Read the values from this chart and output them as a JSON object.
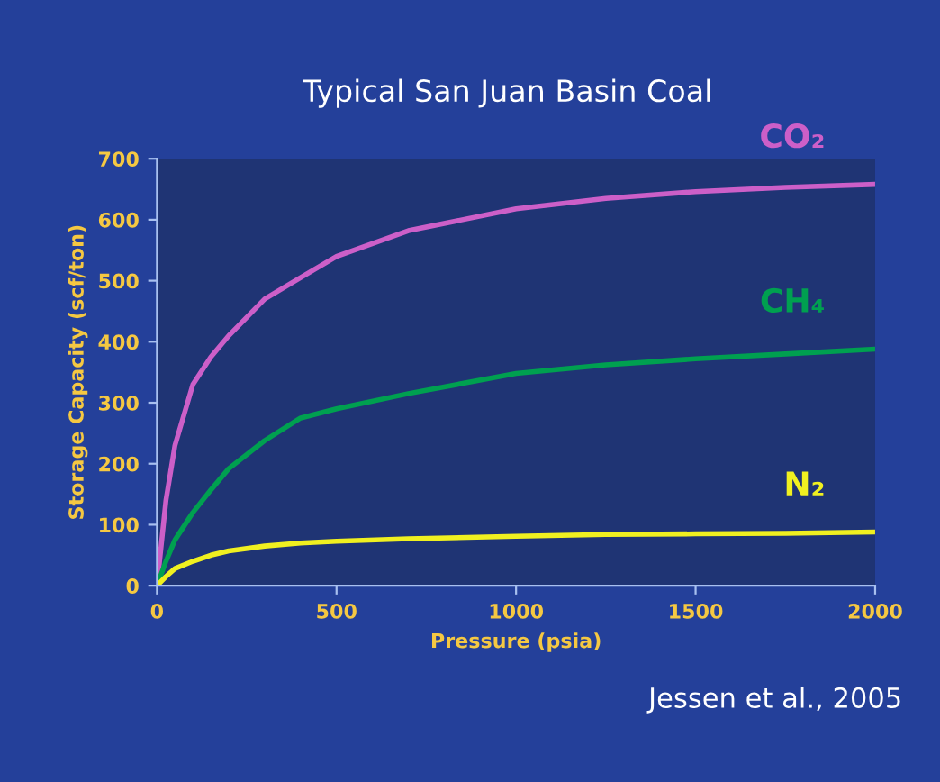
{
  "chart_data": {
    "type": "line",
    "title": "Typical San Juan Basin Coal",
    "xlabel": "Pressure (psia)",
    "ylabel": "Storage Capacity (scf/ton)",
    "x": [
      0,
      25,
      50,
      100,
      150,
      200,
      300,
      400,
      500,
      700,
      1000,
      1250,
      1500,
      1750,
      2000
    ],
    "series": [
      {
        "name": "CO₂",
        "color": "#cc5fc8",
        "values": [
          0,
          140,
          230,
          330,
          375,
          410,
          470,
          505,
          540,
          582,
          618,
          635,
          646,
          653,
          658
        ]
      },
      {
        "name": "CH₄",
        "color": "#00a050",
        "values": [
          0,
          40,
          75,
          120,
          157,
          192,
          238,
          275,
          290,
          315,
          348,
          362,
          372,
          380,
          388
        ]
      },
      {
        "name": "N₂",
        "color": "#f0f020",
        "values": [
          0,
          15,
          28,
          40,
          50,
          57,
          65,
          70,
          73,
          77,
          81,
          84,
          85,
          86,
          88
        ]
      }
    ],
    "xlim": [
      0,
      2000
    ],
    "xticks": [
      0,
      500,
      1000,
      1500,
      2000
    ],
    "ylim": [
      0,
      700
    ],
    "yticks": [
      0,
      100,
      200,
      300,
      400,
      500,
      600,
      700
    ],
    "grid": false,
    "legend": false,
    "marker": "none",
    "line_style": "solid",
    "annotations": [
      "Jessen et al., 2005"
    ]
  }
}
